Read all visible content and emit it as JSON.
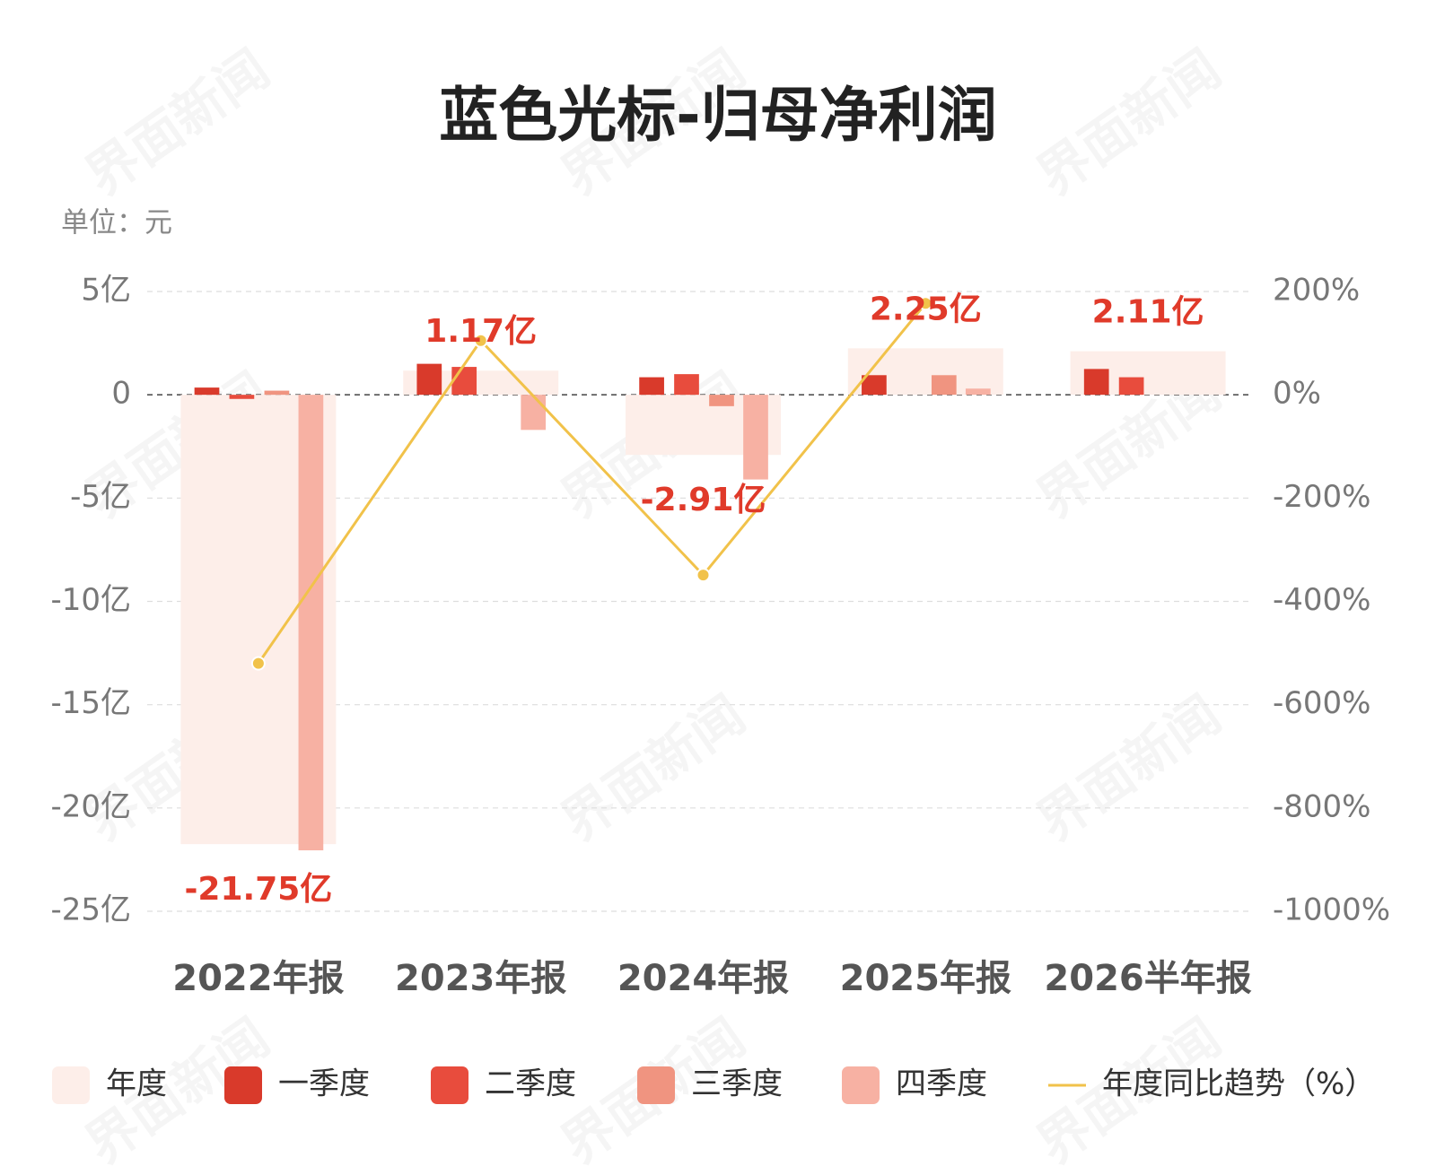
{
  "chart_data": {
    "type": "bar",
    "title": "蓝色光标-归母净利润",
    "unit_label": "单位：元",
    "watermark": "界面新闻",
    "categories": [
      "2022年报",
      "2023年报",
      "2024年报",
      "2025年报",
      "2026半年报"
    ],
    "series": [
      {
        "name": "年度",
        "color": "#fdeee9",
        "values": [
          -21.75,
          1.17,
          -2.91,
          2.25,
          2.11
        ],
        "value_labels": [
          "-21.75亿",
          "1.17亿",
          "-2.91亿",
          "2.25亿",
          "2.11亿"
        ]
      },
      {
        "name": "一季度",
        "color": "#d93a2b",
        "values": [
          0.35,
          1.5,
          0.85,
          0.95,
          1.25
        ]
      },
      {
        "name": "二季度",
        "color": "#e84c3d",
        "values": [
          -0.2,
          1.35,
          1.0,
          null,
          0.85
        ]
      },
      {
        "name": "三季度",
        "color": "#f09480",
        "values": [
          0.2,
          null,
          -0.55,
          0.95,
          null
        ]
      },
      {
        "name": "四季度",
        "color": "#f7b1a3",
        "values": [
          -22.05,
          -1.7,
          -4.1,
          0.3,
          null
        ]
      },
      {
        "name": "年度同比趋势（%）",
        "type": "line",
        "axis": "y2",
        "color": "#f1c24a",
        "values": [
          -520,
          105,
          -349,
          177,
          null
        ]
      }
    ],
    "ylim": [
      -25,
      5
    ],
    "yticks": [
      {
        "value": 5,
        "label": "5亿"
      },
      0,
      {
        "value": -5,
        "label": "-5亿"
      },
      {
        "value": -10,
        "label": "-10亿"
      },
      {
        "value": -15,
        "label": "-15亿"
      },
      {
        "value": -20,
        "label": "-20亿"
      },
      {
        "value": -25,
        "label": "-25亿"
      }
    ],
    "y2lim": [
      -1000,
      200
    ],
    "y2ticks": [
      {
        "value": 200,
        "label": "200%"
      },
      {
        "value": 0,
        "label": "0%"
      },
      {
        "value": -200,
        "label": "-200%"
      },
      {
        "value": -400,
        "label": "-400%"
      },
      {
        "value": -600,
        "label": "-600%"
      },
      {
        "value": -800,
        "label": "-800%"
      },
      {
        "value": -1000,
        "label": "-1000%"
      }
    ],
    "grid": true,
    "legend": "bottom"
  }
}
